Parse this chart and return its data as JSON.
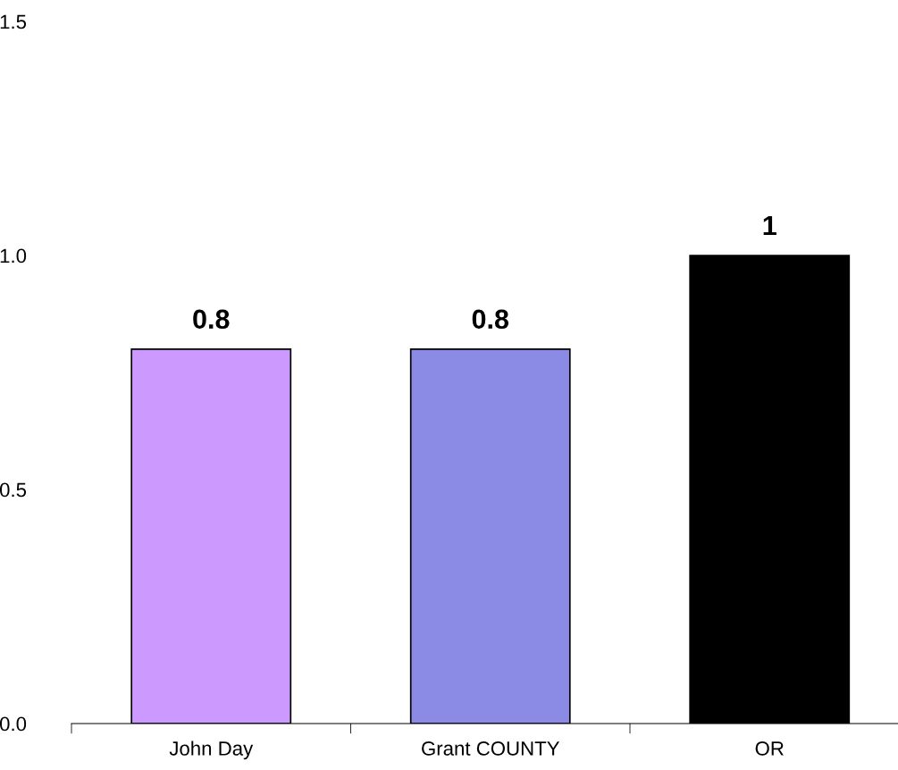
{
  "chart_data": {
    "type": "bar",
    "categories": [
      "John Day",
      "Grant COUNTY",
      "OR"
    ],
    "values": [
      0.8,
      0.8,
      1
    ],
    "colors": [
      "#cc99ff",
      "#8b8be6",
      "#000000"
    ],
    "ylim": [
      0,
      1.5
    ],
    "yticks": [
      {
        "value": 0,
        "label": "0.0"
      },
      {
        "value": 0.5,
        "label": "0.5"
      },
      {
        "value": 1,
        "label": "1.0"
      },
      {
        "value": 1.5,
        "label": "1.5"
      }
    ],
    "data_labels": true,
    "grid": false,
    "legend": false
  }
}
